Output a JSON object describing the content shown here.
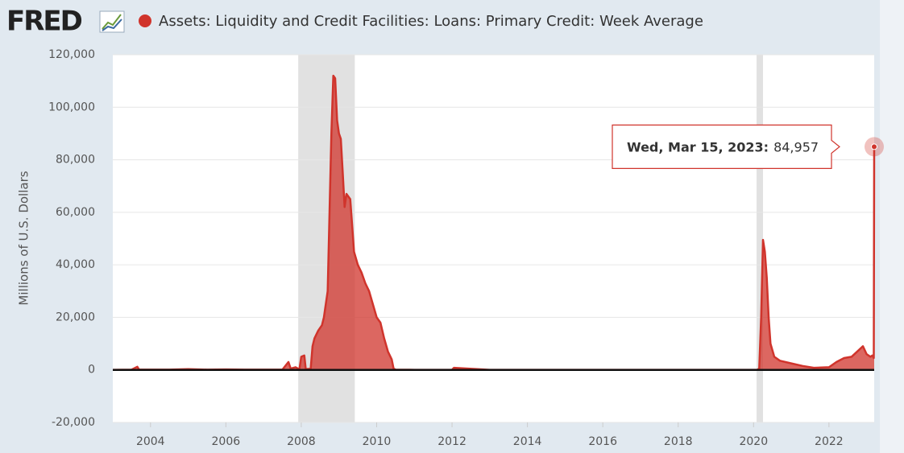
{
  "chart_data": {
    "type": "area",
    "logo": "FRED",
    "ylabel": "Millions of U.S. Dollars",
    "xlim": [
      2003.0,
      2023.2
    ],
    "ylim": [
      -20000,
      120000
    ],
    "xticks": [
      2004,
      2006,
      2008,
      2010,
      2012,
      2014,
      2016,
      2018,
      2020,
      2022
    ],
    "yticks": [
      {
        "value": -20000,
        "label": "-20,000"
      },
      0,
      {
        "value": 20000,
        "label": "20,000"
      },
      {
        "value": 40000,
        "label": "40,000"
      },
      {
        "value": 60000,
        "label": "60,000"
      },
      {
        "value": 80000,
        "label": "80,000"
      },
      {
        "value": 100000,
        "label": "100,000"
      },
      {
        "value": 120000,
        "label": "120,000"
      }
    ],
    "grid": true,
    "recessions": [
      [
        2007.92,
        2009.42
      ],
      [
        2020.08,
        2020.25
      ]
    ],
    "x": [
      2003.0,
      2003.5,
      2003.65,
      2003.7,
      2004.5,
      2005.0,
      2005.5,
      2006.0,
      2006.5,
      2007.0,
      2007.5,
      2007.66,
      2007.72,
      2007.85,
      2007.95,
      2008.0,
      2008.08,
      2008.12,
      2008.25,
      2008.3,
      2008.35,
      2008.45,
      2008.55,
      2008.6,
      2008.7,
      2008.75,
      2008.8,
      2008.85,
      2008.9,
      2008.95,
      2009.0,
      2009.05,
      2009.1,
      2009.15,
      2009.2,
      2009.3,
      2009.35,
      2009.4,
      2009.5,
      2009.6,
      2009.7,
      2009.8,
      2009.9,
      2010.0,
      2010.1,
      2010.2,
      2010.3,
      2010.4,
      2010.45,
      2010.5,
      2011.0,
      2012.0,
      2012.05,
      2013.0,
      2014.0,
      2015.0,
      2016.0,
      2017.0,
      2018.0,
      2019.0,
      2020.1,
      2020.15,
      2020.2,
      2020.25,
      2020.3,
      2020.35,
      2020.4,
      2020.45,
      2020.55,
      2020.7,
      2021.0,
      2021.3,
      2021.6,
      2022.0,
      2022.2,
      2022.4,
      2022.6,
      2022.75,
      2022.9,
      2023.0,
      2023.1,
      2023.15,
      2023.19,
      2023.2
    ],
    "series": [
      {
        "name": "Assets: Liquidity and Credit Facilities: Loans: Primary Credit: Week Average",
        "color": "#d0342c",
        "values": [
          50,
          100,
          1200,
          100,
          100,
          300,
          100,
          200,
          100,
          100,
          100,
          3000,
          500,
          1000,
          200,
          5000,
          5500,
          300,
          400,
          9000,
          12000,
          15000,
          17000,
          20000,
          30000,
          60000,
          90000,
          112000,
          111000,
          95000,
          90000,
          88000,
          75000,
          62000,
          67000,
          65000,
          55000,
          45000,
          40000,
          37000,
          33000,
          30000,
          25000,
          20000,
          18000,
          12000,
          7000,
          4000,
          500,
          100,
          50,
          50,
          800,
          50,
          50,
          50,
          50,
          50,
          50,
          50,
          50,
          500,
          20000,
          49500,
          45000,
          35000,
          20000,
          10000,
          5000,
          3500,
          2500,
          1500,
          800,
          1000,
          3000,
          4500,
          5000,
          7000,
          9000,
          6000,
          5000,
          5500,
          4500,
          84957
        ]
      }
    ],
    "tooltip": {
      "label": "Wed, Mar 15, 2023:",
      "value": 84957,
      "value_label": "84,957"
    }
  }
}
